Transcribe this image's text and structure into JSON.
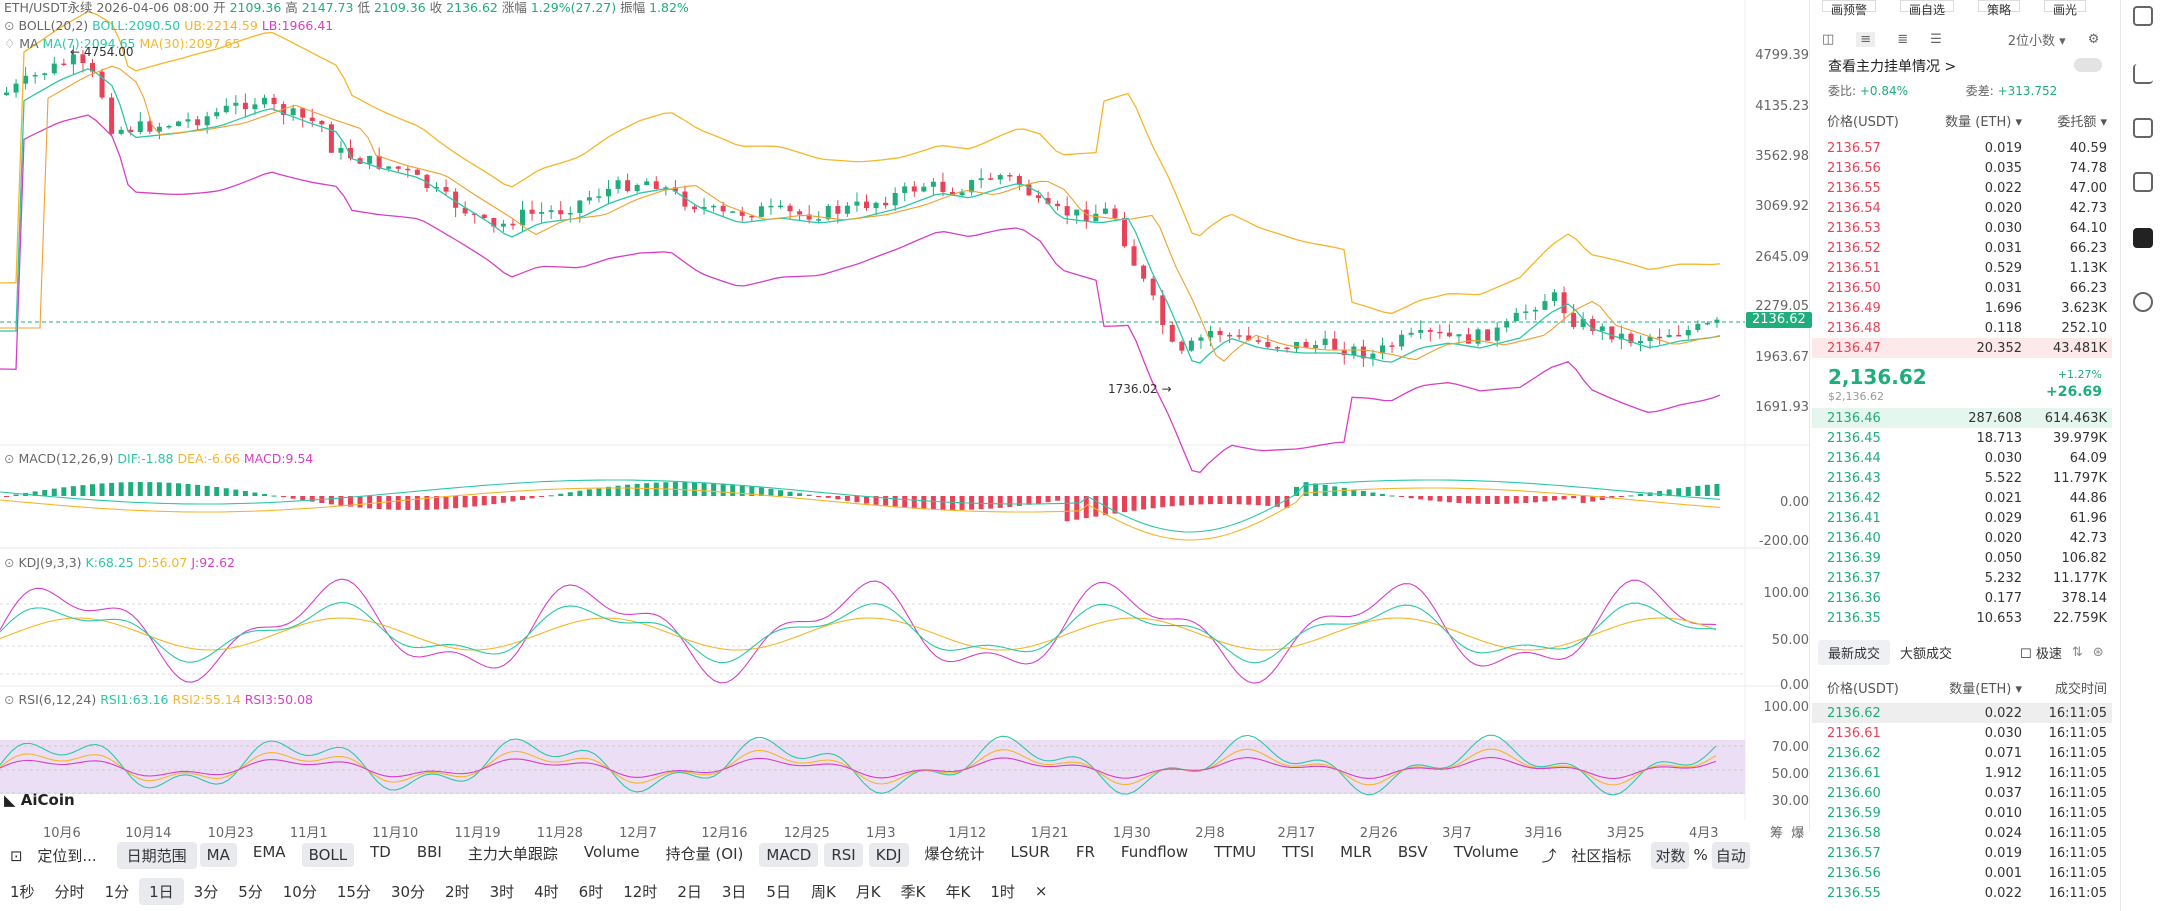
{
  "header": {
    "symbol": "ETH/USDT永续",
    "date": "2026-04-06 08:00",
    "open_label": "开",
    "open": "2109.36",
    "high_label": "高",
    "high": "2147.73",
    "low_label": "低",
    "low": "2109.36",
    "close_label": "收",
    "close": "2136.62",
    "change_label": "涨幅",
    "change": "1.29%(27.27)",
    "amp_label": "振幅",
    "amp": "1.82%"
  },
  "indicators": {
    "boll": {
      "name": "BOLL(20,2)",
      "boll": "BOLL:2090.50",
      "ub": "UB:2214.59",
      "lb": "LB:1966.41"
    },
    "ma": {
      "name": "MA",
      "ma7": "MA(7):2094.65",
      "ma30": "MA(30):2097.65"
    },
    "macd": {
      "name": "MACD(12,26,9)",
      "dif": "DIF:-1.88",
      "dea": "DEA:-6.66",
      "macd": "MACD:9.54"
    },
    "kdj": {
      "name": "KDJ(9,3,3)",
      "k": "K:68.25",
      "d": "D:56.07",
      "j": "J:92.62"
    },
    "rsi": {
      "name": "RSI(6,12,24)",
      "r1": "RSI1:63.16",
      "r2": "RSI2:55.14",
      "r3": "RSI3:50.08"
    }
  },
  "price_axis": {
    "ticks": [
      "4799.39",
      "4135.23",
      "3562.98",
      "3069.92",
      "2645.09",
      "2279.05",
      "1963.67",
      "1691.93"
    ],
    "current": "2136.62"
  },
  "macd_axis": [
    "0.00",
    "-200.00"
  ],
  "kdj_axis": [
    "100.00",
    "50.00",
    "0.00"
  ],
  "rsi_axis": [
    "100.00",
    "70.00",
    "50.00",
    "30.00"
  ],
  "annotations": {
    "high": "4754.00",
    "low": "1736.02"
  },
  "x_axis": [
    "10月6",
    "10月14",
    "10月23",
    "11月1",
    "11月10",
    "11月19",
    "11月28",
    "12月7",
    "12月16",
    "12月25",
    "1月3",
    "1月12",
    "1月21",
    "1月30",
    "2月8",
    "2月17",
    "2月26",
    "3月7",
    "3月16",
    "3月25",
    "4月3"
  ],
  "x_axis_right": [
    "筹",
    "爆"
  ],
  "watermark": "AiCoin",
  "toolbar": {
    "locate": "定位到...",
    "range": "日期范围",
    "items": [
      "MA",
      "EMA",
      "BOLL",
      "TD",
      "BBI",
      "主力大单跟踪",
      "Volume",
      "持仓量 (OI)",
      "MACD",
      "RSI",
      "KDJ",
      "爆仓统计",
      "LSUR",
      "FR",
      "Fundflow",
      "TTMU",
      "TTSI",
      "MLR",
      "BSV",
      "TVolume"
    ],
    "community": "社区指标",
    "dual": "对数",
    "pct": "%",
    "auto": "自动"
  },
  "periods": [
    "1秒",
    "分时",
    "1分",
    "1日",
    "3分",
    "5分",
    "10分",
    "15分",
    "30分",
    "2时",
    "3时",
    "4时",
    "6时",
    "12时",
    "2日",
    "3日",
    "5日",
    "周K",
    "月K",
    "季K",
    "年K",
    "1时",
    "×"
  ],
  "orderbook": {
    "top_tabs": [
      "画预警",
      "画自选",
      "策略",
      "画光"
    ],
    "decimals": "2位小数",
    "main_orders": "查看主力挂单情况 >",
    "ratio_label": "委比:",
    "ratio": "+0.84%",
    "diff_label": "委差:",
    "diff": "+313.752",
    "cols": [
      "价格(USDT)",
      "数量 (ETH)",
      "委托额"
    ],
    "asks": [
      [
        "2136.57",
        "0.019",
        "40.59"
      ],
      [
        "2136.56",
        "0.035",
        "74.78"
      ],
      [
        "2136.55",
        "0.022",
        "47.00"
      ],
      [
        "2136.54",
        "0.020",
        "42.73"
      ],
      [
        "2136.53",
        "0.030",
        "64.10"
      ],
      [
        "2136.52",
        "0.031",
        "66.23"
      ],
      [
        "2136.51",
        "0.529",
        "1.13K"
      ],
      [
        "2136.50",
        "0.031",
        "66.23"
      ],
      [
        "2136.49",
        "1.696",
        "3.623K"
      ],
      [
        "2136.48",
        "0.118",
        "252.10"
      ],
      [
        "2136.47",
        "20.352",
        "43.481K"
      ]
    ],
    "last": "2,136.62",
    "last_usd": "$2,136.62",
    "pct": "+1.27%",
    "chg": "+26.69",
    "bids": [
      [
        "2136.46",
        "287.608",
        "614.463K"
      ],
      [
        "2136.45",
        "18.713",
        "39.979K"
      ],
      [
        "2136.44",
        "0.030",
        "64.09"
      ],
      [
        "2136.43",
        "5.522",
        "11.797K"
      ],
      [
        "2136.42",
        "0.021",
        "44.86"
      ],
      [
        "2136.41",
        "0.029",
        "61.96"
      ],
      [
        "2136.40",
        "0.020",
        "42.73"
      ],
      [
        "2136.39",
        "0.050",
        "106.82"
      ],
      [
        "2136.37",
        "5.232",
        "11.177K"
      ],
      [
        "2136.36",
        "0.177",
        "378.14"
      ],
      [
        "2136.35",
        "10.653",
        "22.759K"
      ]
    ]
  },
  "trades": {
    "tabs": [
      "最新成交",
      "大额成交"
    ],
    "fast": "极速",
    "cols": [
      "价格(USDT)",
      "数量(ETH)",
      "成交时间"
    ],
    "rows": [
      [
        "2136.62",
        "0.022",
        "16:11:05",
        "g"
      ],
      [
        "2136.61",
        "0.030",
        "16:11:05",
        "r"
      ],
      [
        "2136.62",
        "0.071",
        "16:11:05",
        "g"
      ],
      [
        "2136.61",
        "1.912",
        "16:11:05",
        "g"
      ],
      [
        "2136.60",
        "0.037",
        "16:11:05",
        "g"
      ],
      [
        "2136.59",
        "0.010",
        "16:11:05",
        "g"
      ],
      [
        "2136.58",
        "0.024",
        "16:11:05",
        "g"
      ],
      [
        "2136.57",
        "0.019",
        "16:11:05",
        "g"
      ],
      [
        "2136.56",
        "0.001",
        "16:11:05",
        "g"
      ],
      [
        "2136.55",
        "0.022",
        "16:11:05",
        "g"
      ]
    ]
  },
  "colors": {
    "up": "#1fad7b",
    "down": "#e84258",
    "boll_mid": "#2cc8a6",
    "boll_ub": "#f5b62b",
    "boll_lb": "#d63fc8"
  }
}
